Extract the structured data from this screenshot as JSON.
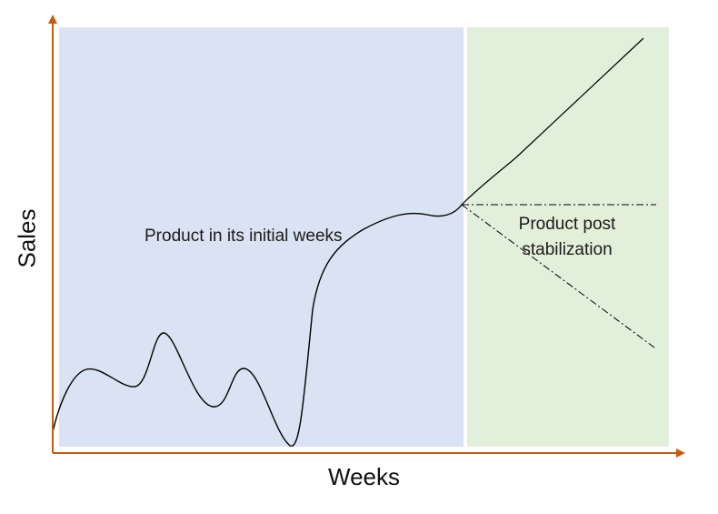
{
  "diagram": {
    "xlabel": "Weeks",
    "ylabel": "Sales",
    "regions": [
      {
        "label": "Product in its initial weeks",
        "color": "#dae3f3"
      },
      {
        "label": "Product post stabilization",
        "color": "#e2efda"
      }
    ],
    "colors": {
      "axis": "#c55a11",
      "curve": "#000000",
      "divider": "#ffffff"
    },
    "trend_lines": [
      "increase",
      "flat",
      "decrease"
    ]
  }
}
